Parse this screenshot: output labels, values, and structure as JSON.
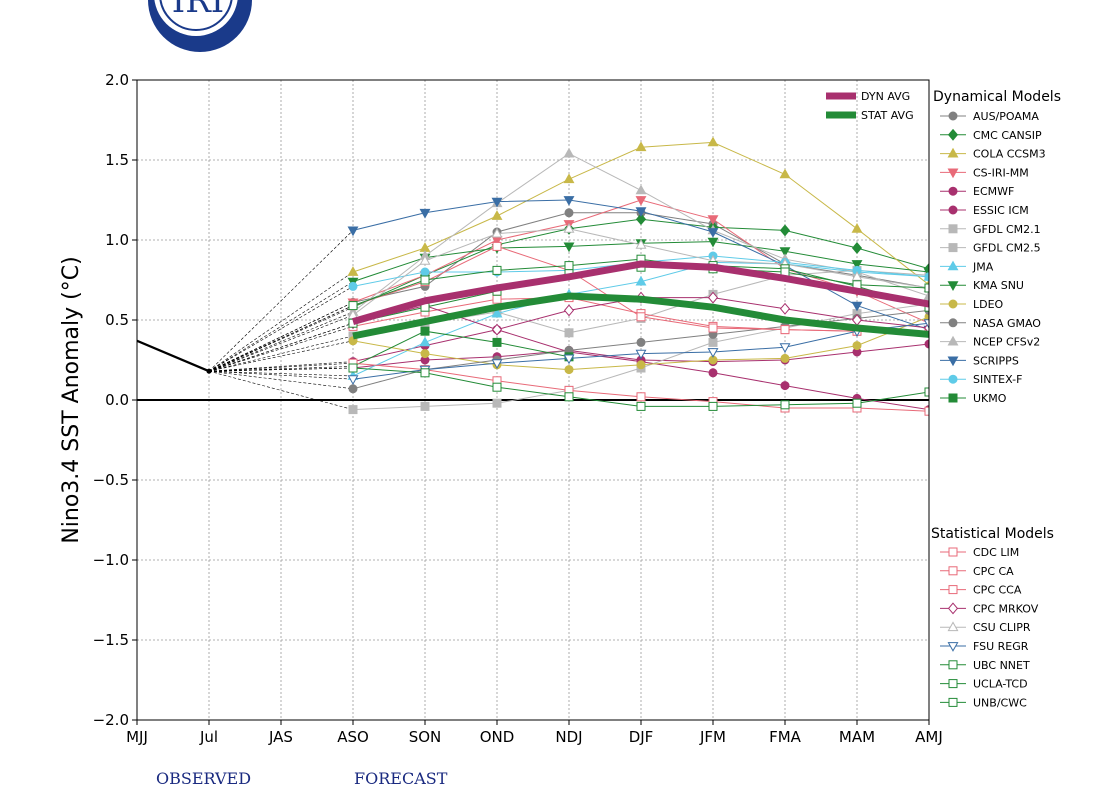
{
  "logo": {
    "text": "IRI"
  },
  "chart_data": {
    "type": "line",
    "ylabel": "Nino3.4 SST Anomaly (°C)",
    "ylim": [
      -2.0,
      2.0
    ],
    "yticks": [
      -2.0,
      -1.5,
      -1.0,
      -0.5,
      0.0,
      0.5,
      1.0,
      1.5,
      2.0
    ],
    "yticklabels": [
      "−2.0",
      "−1.5",
      "−1.0",
      "−0.5",
      "0.0",
      "0.5",
      "1.0",
      "1.5",
      "2.0"
    ],
    "categories": [
      "MJJ",
      "Jul",
      "JAS",
      "ASO",
      "SON",
      "OND",
      "NDJ",
      "DJF",
      "JFM",
      "FMA",
      "MAM",
      "AMJ"
    ],
    "grid": true,
    "observed": {
      "x": [
        "MJJ",
        "Jul"
      ],
      "values": [
        0.37,
        0.18
      ]
    },
    "averages": [
      {
        "name": "DYN AVG",
        "color": "#a8306e",
        "values": [
          0.49,
          0.62,
          0.7,
          0.77,
          0.85,
          0.83,
          0.76,
          0.68,
          0.6
        ]
      },
      {
        "name": "STAT AVG",
        "color": "#238b37",
        "values": [
          0.4,
          0.49,
          0.58,
          0.65,
          0.63,
          0.58,
          0.5,
          0.45,
          0.41
        ]
      }
    ],
    "dynamical_title": "Dynamical Models",
    "dynamical_models": [
      {
        "name": "AUS/POAMA",
        "color": "#808080",
        "marker": "circle",
        "filled": true,
        "values": [
          0.61,
          0.71,
          1.05,
          1.17,
          1.17,
          1.1,
          0.85,
          0.78,
          0.7
        ]
      },
      {
        "name": "CMC CANSIP",
        "color": "#238b37",
        "marker": "diamond",
        "filled": true,
        "values": [
          0.58,
          0.78,
          0.97,
          1.07,
          1.13,
          1.08,
          1.06,
          0.95,
          0.82
        ]
      },
      {
        "name": "COLA CCSM3",
        "color": "#c8b848",
        "marker": "triangle-up",
        "filled": true,
        "values": [
          0.8,
          0.95,
          1.15,
          1.38,
          1.58,
          1.61,
          1.41,
          1.07,
          0.72
        ]
      },
      {
        "name": "CS-IRI-MM",
        "color": "#e86a78",
        "marker": "triangle-down",
        "filled": true,
        "values": [
          0.61,
          0.78,
          1.0,
          1.1,
          1.25,
          1.13,
          0.82,
          0.68,
          0.48
        ]
      },
      {
        "name": "ECMWF",
        "color": "#a8306e",
        "marker": "circle",
        "filled": true,
        "values": [
          0.24,
          0.34,
          0.44,
          0.3,
          0.24,
          0.17,
          0.09,
          0.01,
          -0.06
        ]
      },
      {
        "name": "ESSIC ICM",
        "color": "#a8306e",
        "marker": "circle",
        "filled": true,
        "values": [
          0.2,
          0.25,
          0.27,
          0.31,
          0.25,
          0.24,
          0.25,
          0.3,
          0.35
        ]
      },
      {
        "name": "GFDL CM2.1",
        "color": "#b8b8b8",
        "marker": "square",
        "filled": true,
        "values": [
          -0.06,
          -0.04,
          -0.02,
          0.06,
          0.2,
          0.36,
          0.45,
          0.54,
          0.6
        ]
      },
      {
        "name": "GFDL CM2.5",
        "color": "#b8b8b8",
        "marker": "square",
        "filled": true,
        "values": [
          0.4,
          0.48,
          0.55,
          0.42,
          0.51,
          0.66,
          0.78,
          0.81,
          0.78
        ]
      },
      {
        "name": "JMA",
        "color": "#5fcbe8",
        "marker": "triangle-up",
        "filled": true,
        "values": [
          0.15,
          0.36,
          0.54,
          0.66,
          0.74,
          0.86,
          0.85,
          0.8,
          0.77
        ]
      },
      {
        "name": "KMA SNU",
        "color": "#238b37",
        "marker": "triangle-down",
        "filled": true,
        "values": [
          0.74,
          0.89,
          0.95,
          0.96,
          0.98,
          0.99,
          0.93,
          0.85,
          0.8
        ]
      },
      {
        "name": "LDEO",
        "color": "#c8b848",
        "marker": "circle",
        "filled": true,
        "values": [
          0.37,
          0.29,
          0.22,
          0.19,
          0.22,
          0.25,
          0.26,
          0.34,
          0.52
        ]
      },
      {
        "name": "NASA GMAO",
        "color": "#808080",
        "marker": "circle",
        "filled": true,
        "values": [
          0.07,
          0.19,
          0.25,
          0.31,
          0.36,
          0.41,
          0.46,
          0.51,
          0.56
        ]
      },
      {
        "name": "NCEP CFSv2",
        "color": "#b8b8b8",
        "marker": "triangle-up",
        "filled": true,
        "values": [
          0.55,
          0.9,
          1.23,
          1.54,
          1.31,
          1.06,
          0.88,
          0.8,
          0.65
        ]
      },
      {
        "name": "SCRIPPS",
        "color": "#3a6ea5",
        "marker": "triangle-down",
        "filled": true,
        "values": [
          1.06,
          1.17,
          1.24,
          1.25,
          1.18,
          1.05,
          0.84,
          0.59,
          0.44
        ]
      },
      {
        "name": "SINTEX-F",
        "color": "#5fcbe8",
        "marker": "circle",
        "filled": true,
        "values": [
          0.71,
          0.8,
          0.8,
          0.81,
          0.86,
          0.9,
          0.86,
          0.81,
          0.77
        ]
      },
      {
        "name": "UKMO",
        "color": "#238b37",
        "marker": "square",
        "filled": true,
        "values": [
          0.21,
          0.43,
          0.36,
          0.27,
          null,
          null,
          null,
          null,
          null
        ]
      }
    ],
    "statistical_title": "Statistical Models",
    "statistical_models": [
      {
        "name": "CDC LIM",
        "color": "#e86a78",
        "marker": "square",
        "filled": false,
        "values": [
          0.23,
          0.19,
          0.12,
          0.06,
          0.02,
          -0.01,
          -0.05,
          -0.05,
          -0.07
        ]
      },
      {
        "name": "CPC CA",
        "color": "#e86a78",
        "marker": "square",
        "filled": false,
        "values": [
          0.46,
          0.55,
          0.63,
          0.64,
          0.54,
          0.46,
          0.44,
          0.43,
          0.42
        ]
      },
      {
        "name": "CPC CCA",
        "color": "#e86a78",
        "marker": "square",
        "filled": false,
        "values": [
          0.59,
          0.74,
          0.96,
          0.81,
          0.52,
          0.45,
          0.44,
          0.43,
          0.42
        ]
      },
      {
        "name": "CPC MRKOV",
        "color": "#a8306e",
        "marker": "diamond",
        "filled": false,
        "values": [
          0.48,
          0.59,
          0.44,
          0.56,
          0.64,
          0.64,
          0.57,
          0.5,
          0.45
        ]
      },
      {
        "name": "CSU CLIPR",
        "color": "#b8b8b8",
        "marker": "triangle-up",
        "filled": false,
        "values": [
          0.53,
          0.87,
          1.04,
          1.07,
          0.97,
          0.87,
          0.85,
          0.77,
          0.7
        ]
      },
      {
        "name": "FSU REGR",
        "color": "#3a6ea5",
        "marker": "triangle-down",
        "filled": false,
        "values": [
          0.13,
          0.19,
          0.23,
          0.26,
          0.29,
          0.3,
          0.33,
          0.43,
          0.48
        ]
      },
      {
        "name": "UBC NNET",
        "color": "#238b37",
        "marker": "square",
        "filled": false,
        "values": [
          0.2,
          0.17,
          0.08,
          0.02,
          -0.04,
          -0.04,
          -0.03,
          -0.02,
          0.05
        ]
      },
      {
        "name": "UCLA-TCD",
        "color": "#238b37",
        "marker": "square",
        "filled": false,
        "values": [
          0.48,
          0.58,
          0.68,
          0.79,
          0.83,
          0.84,
          0.82,
          0.71,
          0.58
        ]
      },
      {
        "name": "UNB/CWC",
        "color": "#238b37",
        "marker": "square",
        "filled": false,
        "values": [
          0.59,
          0.75,
          0.81,
          0.84,
          0.88,
          0.82,
          0.8,
          0.72,
          0.7
        ]
      }
    ]
  },
  "footer": {
    "observed_label": "OBSERVED",
    "forecast_label": "FORECAST"
  }
}
